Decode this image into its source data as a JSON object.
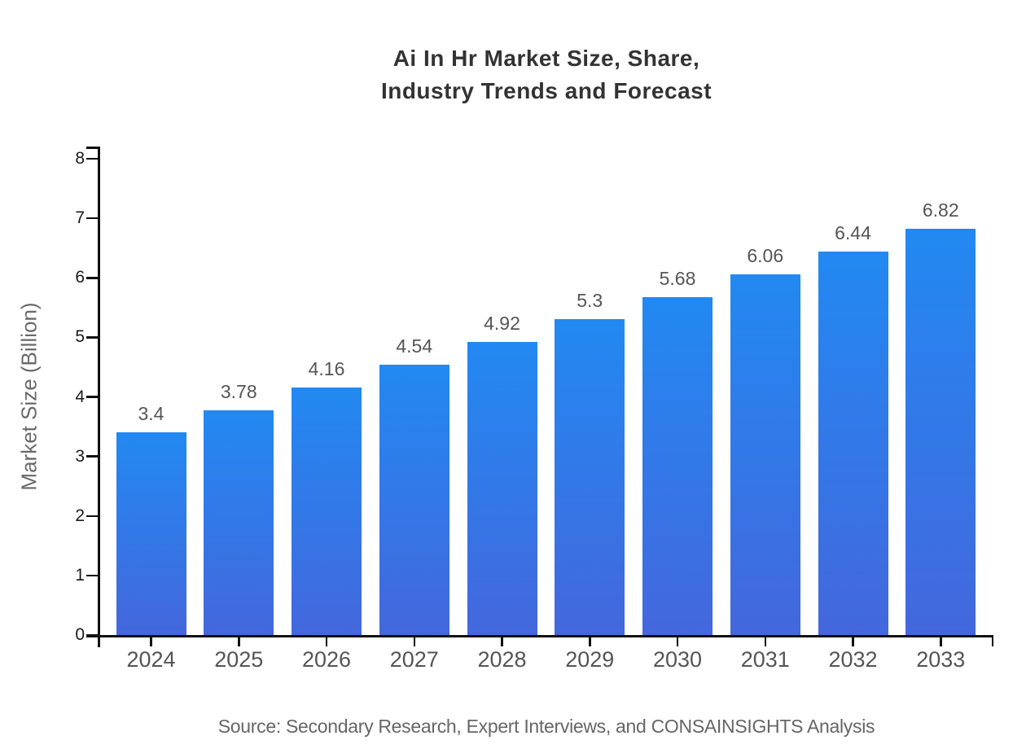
{
  "title": {
    "line1": "Ai In Hr Market Size, Share,",
    "line2": "Industry Trends and Forecast"
  },
  "source": "Source: Secondary Research, Expert Interviews, and CONSAINSIGHTS Analysis",
  "colors": {
    "background": "#ffffff",
    "bar_gradient_top": "#2289f2",
    "bar_gradient_bottom": "#4467dd",
    "axis": "#111111",
    "title_text": "#333333",
    "y_tick_label": "#1a1a1a",
    "x_tick_label": "#555555",
    "value_label": "#555555",
    "axis_title": "#696969",
    "source_text": "#666666"
  },
  "chart_data": {
    "type": "bar",
    "title": "Ai In Hr Market Size, Share, Industry Trends and Forecast",
    "categories": [
      "2024",
      "2025",
      "2026",
      "2027",
      "2028",
      "2029",
      "2030",
      "2031",
      "2032",
      "2033"
    ],
    "values": [
      3.4,
      3.78,
      4.16,
      4.54,
      4.92,
      5.3,
      5.68,
      6.06,
      6.44,
      6.82
    ],
    "value_labels": [
      "3.4",
      "3.78",
      "4.16",
      "4.54",
      "4.92",
      "5.3",
      "5.68",
      "6.06",
      "6.44",
      "6.82"
    ],
    "xlabel": "",
    "ylabel": "Market Size (Billion)",
    "ylim": [
      0,
      8
    ],
    "yticks": [
      0,
      1,
      2,
      3,
      4,
      5,
      6,
      7,
      8
    ],
    "grid": false,
    "legend": null,
    "bar_color": "blue gradient (light blue top to indigo bottom)"
  }
}
